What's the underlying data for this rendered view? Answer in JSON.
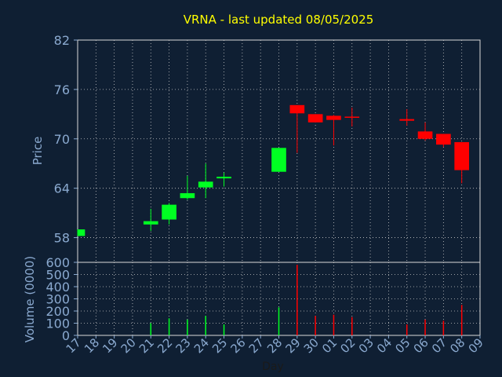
{
  "chart_data": [
    {
      "type": "candlestick",
      "title": "VRNA - last updated 08/05/2025",
      "ylabel": "Price",
      "ylim": [
        55,
        82
      ],
      "yticks": [
        58,
        64,
        70,
        76,
        82
      ],
      "x_tick_labels": [
        "17",
        "18",
        "19",
        "20",
        "21",
        "22",
        "23",
        "24",
        "25",
        "26",
        "27",
        "28",
        "29",
        "30",
        "01",
        "02",
        "03",
        "04",
        "05",
        "06",
        "07",
        "08",
        "09"
      ],
      "grid": true,
      "candles": [
        {
          "day": "17",
          "open": 58.2,
          "close": 59.0,
          "high": 59.0,
          "low": 58.2
        },
        {
          "day": "21",
          "open": 59.6,
          "close": 60.0,
          "high": 61.5,
          "low": 58.8
        },
        {
          "day": "22",
          "open": 60.2,
          "close": 62.0,
          "high": 62.2,
          "low": 59.6
        },
        {
          "day": "23",
          "open": 62.8,
          "close": 63.4,
          "high": 65.5,
          "low": 62.6
        },
        {
          "day": "24",
          "open": 64.1,
          "close": 64.8,
          "high": 67.0,
          "low": 62.8
        },
        {
          "day": "25",
          "open": 65.2,
          "close": 65.4,
          "high": 65.9,
          "low": 64.2
        },
        {
          "day": "28",
          "open": 66.0,
          "close": 68.9,
          "high": 68.9,
          "low": 66.0
        },
        {
          "day": "29",
          "open": 74.1,
          "close": 73.1,
          "high": 74.1,
          "low": 68.3
        },
        {
          "day": "30",
          "open": 73.0,
          "close": 72.0,
          "high": 73.0,
          "low": 72.0
        },
        {
          "day": "01",
          "open": 72.8,
          "close": 72.3,
          "high": 72.9,
          "low": 69.2
        },
        {
          "day": "02",
          "open": 72.7,
          "close": 72.6,
          "high": 73.8,
          "low": 71.5
        },
        {
          "day": "05",
          "open": 72.4,
          "close": 72.2,
          "high": 73.6,
          "low": 71.6
        },
        {
          "day": "06",
          "open": 70.9,
          "close": 70.0,
          "high": 72.0,
          "low": 69.8
        },
        {
          "day": "07",
          "open": 70.6,
          "close": 69.3,
          "high": 70.6,
          "low": 69.0
        },
        {
          "day": "08",
          "open": 69.6,
          "close": 66.2,
          "high": 69.6,
          "low": 64.6
        }
      ],
      "colors": {
        "up": "#00ff22",
        "down": "#ff0000",
        "background": "#0f1f33",
        "axis": "#8aa9cf",
        "title": "#ffff00",
        "grid": "#c8c8c8"
      }
    },
    {
      "type": "bar",
      "ylabel": "Volume (0000)",
      "xlabel": "Day",
      "ylim": [
        0,
        600
      ],
      "yticks": [
        0,
        100,
        200,
        300,
        400,
        500,
        600
      ],
      "bars": [
        {
          "day": "21",
          "value": 100,
          "color": "#00ff22"
        },
        {
          "day": "22",
          "value": 140,
          "color": "#00ff22"
        },
        {
          "day": "23",
          "value": 130,
          "color": "#00ff22"
        },
        {
          "day": "24",
          "value": 160,
          "color": "#00ff22"
        },
        {
          "day": "25",
          "value": 90,
          "color": "#00ff22"
        },
        {
          "day": "28",
          "value": 230,
          "color": "#00ff22"
        },
        {
          "day": "29",
          "value": 580,
          "color": "#ff0000"
        },
        {
          "day": "30",
          "value": 160,
          "color": "#ff0000"
        },
        {
          "day": "01",
          "value": 170,
          "color": "#ff0000"
        },
        {
          "day": "02",
          "value": 150,
          "color": "#ff0000"
        },
        {
          "day": "05",
          "value": 90,
          "color": "#ff0000"
        },
        {
          "day": "06",
          "value": 130,
          "color": "#ff0000"
        },
        {
          "day": "07",
          "value": 120,
          "color": "#ff0000"
        },
        {
          "day": "08",
          "value": 250,
          "color": "#ff0000"
        }
      ]
    }
  ]
}
